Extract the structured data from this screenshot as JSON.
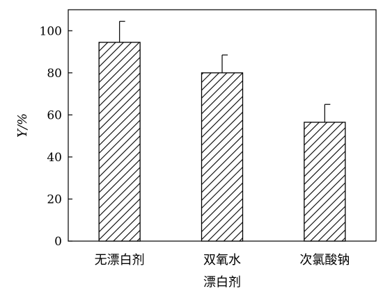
{
  "chart_data": {
    "type": "bar",
    "xlabel": "漂白剂",
    "ylabel": "Y/%",
    "categories": [
      "无漂白剂",
      "双氧水",
      "次氯酸钠"
    ],
    "values": [
      94.5,
      80,
      56.5
    ],
    "error_upper": [
      104.5,
      88.5,
      65
    ],
    "ylim": [
      0,
      110
    ],
    "yticks": [
      0,
      20,
      40,
      60,
      80,
      100
    ],
    "yticklabels": [
      "0",
      "20",
      "40",
      "60",
      "80",
      "100"
    ],
    "grid": false,
    "legend": "none",
    "bar_fill": "diagonal-hatch",
    "colors": {
      "bar_stroke": "#000000",
      "hatch": "#000000",
      "background": "#ffffff"
    }
  }
}
